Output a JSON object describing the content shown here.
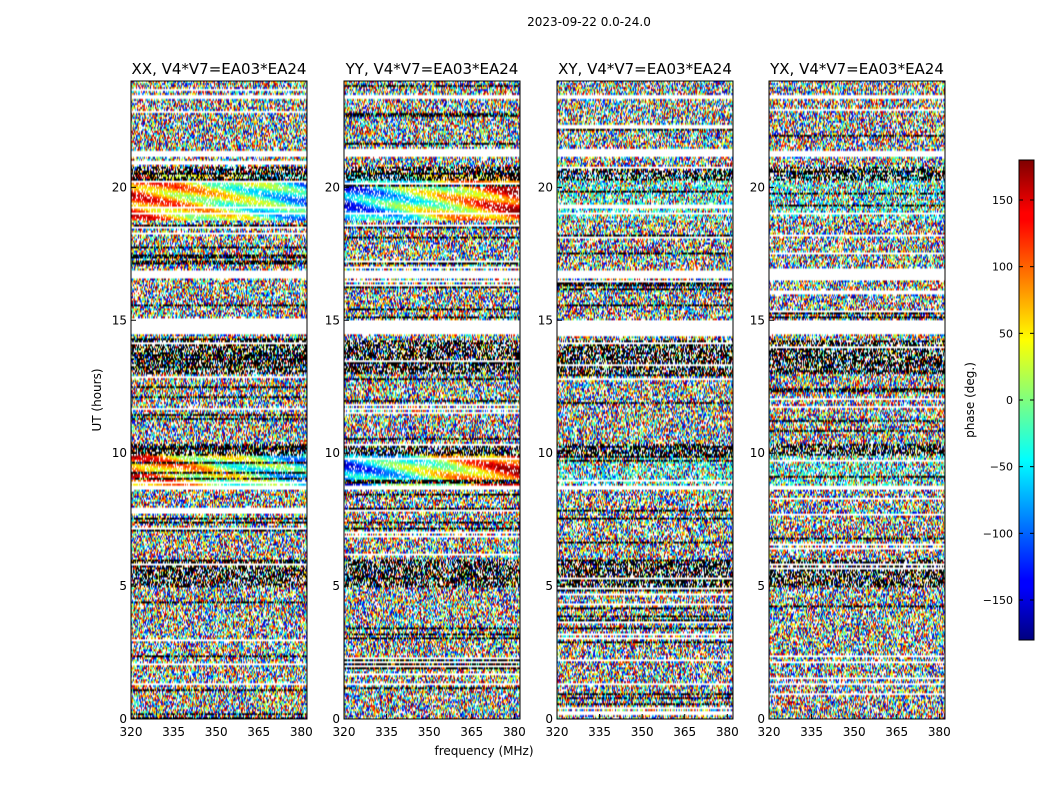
{
  "chart_data": {
    "type": "heatmap",
    "suptitle": "2023-09-22 0.0-24.0",
    "xlabel": "frequency (MHz)",
    "ylabel": "UT (hours)",
    "xlim": [
      320,
      382
    ],
    "ylim": [
      0,
      24
    ],
    "xticks": [
      "320",
      "335",
      "350",
      "365",
      "380"
    ],
    "yticks": [
      "0",
      "5",
      "10",
      "15",
      "20"
    ],
    "panels": [
      {
        "title": "XX, V4*V7=EA03*EA24"
      },
      {
        "title": "YY, V4*V7=EA03*EA24"
      },
      {
        "title": "XY, V4*V7=EA03*EA24"
      },
      {
        "title": "YX, V4*V7=EA03*EA24"
      }
    ],
    "colorbar": {
      "label": "phase (deg.)",
      "range": [
        -180,
        180
      ],
      "ticks": [
        "−150",
        "−100",
        "−50",
        "0",
        "50",
        "100",
        "150"
      ],
      "colormap": "jet"
    }
  }
}
